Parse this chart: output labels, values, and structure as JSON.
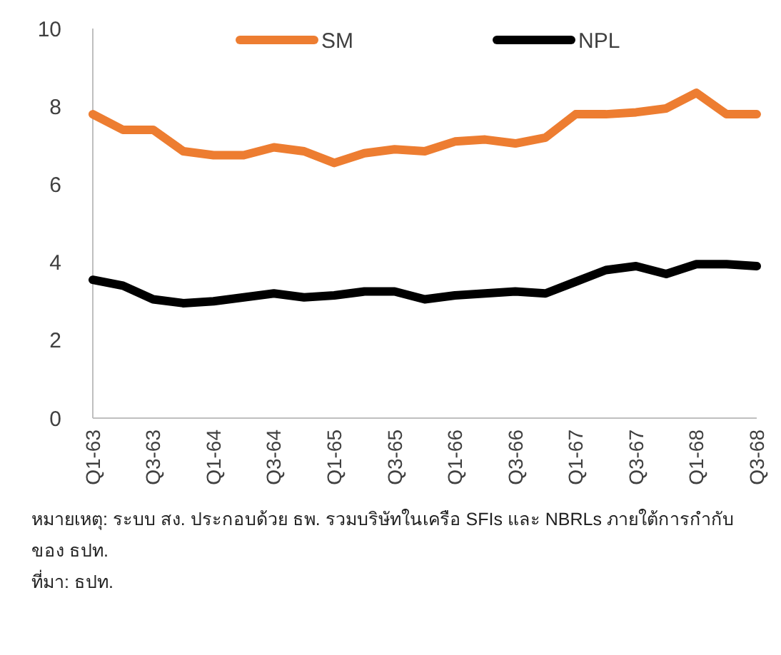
{
  "chart_data": {
    "type": "line",
    "categories": [
      "Q1-63",
      null,
      "Q3-63",
      null,
      "Q1-64",
      null,
      "Q3-64",
      null,
      "Q1-65",
      null,
      "Q3-65",
      null,
      "Q1-66",
      null,
      "Q3-66",
      null,
      "Q1-67",
      null,
      "Q3-67",
      null,
      "Q1-68",
      null,
      "Q3-68"
    ],
    "series": [
      {
        "name": "SM",
        "color": "#ed7d31",
        "values": [
          7.8,
          7.4,
          7.4,
          6.85,
          6.75,
          6.75,
          6.95,
          6.85,
          6.55,
          6.8,
          6.9,
          6.85,
          7.1,
          7.15,
          7.05,
          7.2,
          7.8,
          7.8,
          7.85,
          7.95,
          8.35,
          7.8,
          7.8
        ]
      },
      {
        "name": "NPL",
        "color": "#000000",
        "values": [
          3.55,
          3.4,
          3.05,
          2.95,
          3.0,
          3.1,
          3.2,
          3.1,
          3.15,
          3.25,
          3.25,
          3.05,
          3.15,
          3.2,
          3.25,
          3.2,
          3.5,
          3.8,
          3.9,
          3.7,
          3.95,
          3.95,
          3.9
        ]
      }
    ],
    "ylim": [
      0,
      10
    ],
    "yticks": [
      0,
      2,
      4,
      6,
      8,
      10
    ],
    "grid": false,
    "legend": "top",
    "marker": "none",
    "line_style": "solid",
    "annotations": [
      "หมายเหตุ: ระบบ สง. ประกอบด้วย ธพ. รวมบริษัทในเครือ SFIs และ NBRLs ภายใต้การกำกับ ของ ธปท.",
      "ที่มา: ธปท."
    ]
  }
}
